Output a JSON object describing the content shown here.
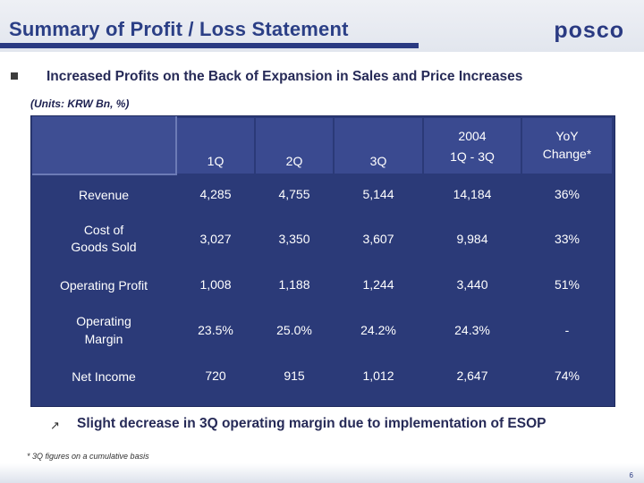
{
  "header": {
    "title": "Summary of Profit / Loss Statement",
    "logo_text": "posco"
  },
  "headline": "Increased Profits on the Back of Expansion in Sales and Price Increases",
  "units": "(Units: KRW Bn, %)",
  "table": {
    "columns": [
      {
        "line1": "",
        "line2": "1Q"
      },
      {
        "line1": "",
        "line2": "2Q"
      },
      {
        "line1": "",
        "line2": "3Q"
      },
      {
        "line1": "2004",
        "line2": "1Q - 3Q"
      },
      {
        "line1": "YoY",
        "line2": "Change*"
      }
    ],
    "rows": [
      {
        "label_line1": "Revenue",
        "label_line2": "",
        "values": [
          "4,285",
          "4,755",
          "5,144",
          "14,184",
          "36%"
        ]
      },
      {
        "label_line1": "Cost of",
        "label_line2": "Goods Sold",
        "values": [
          "3,027",
          "3,350",
          "3,607",
          "9,984",
          "33%"
        ]
      },
      {
        "label_line1": "Operating Profit",
        "label_line2": "",
        "values": [
          "1,008",
          "1,188",
          "1,244",
          "3,440",
          "51%"
        ]
      },
      {
        "label_line1": "Operating",
        "label_line2": "Margin",
        "values": [
          "23.5%",
          "25.0%",
          "24.2%",
          "24.3%",
          "-"
        ]
      },
      {
        "label_line1": "Net Income",
        "label_line2": "",
        "values": [
          "720",
          "915",
          "1,012",
          "2,647",
          "74%"
        ]
      }
    ]
  },
  "note": "Slight decrease in 3Q operating margin due to implementation of ESOP",
  "note_icon": "arrow-icon",
  "footnote": "* 3Q figures on a cumulative basis",
  "page_number": "6",
  "colors": {
    "brand": "#2a3a82",
    "table_bg": "#2b3a78",
    "header_bg": "#3a4a90"
  }
}
